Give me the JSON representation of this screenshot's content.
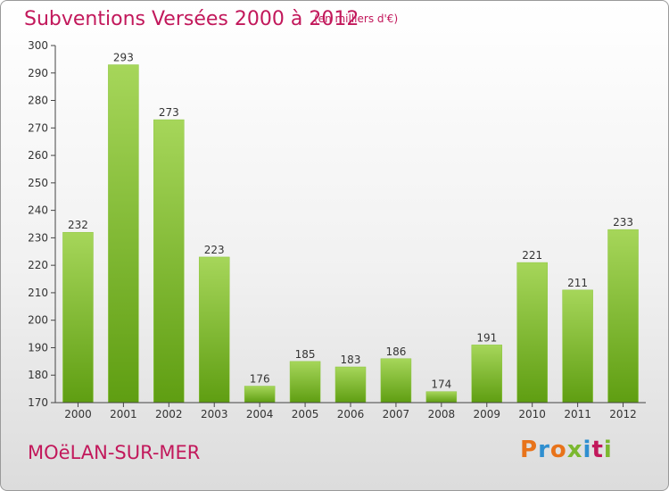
{
  "header": {
    "title": "Subventions Versées 2000 à 2012",
    "unit_note": "(en milliers d'€)"
  },
  "footer": {
    "city": "MOëLAN-SUR-MER",
    "logo_text": "Proxiti",
    "logo_colors": [
      "#e8731a",
      "#2f8fd0",
      "#e8731a",
      "#7bb82f",
      "#2f8fd0",
      "#c2185b",
      "#7bb82f"
    ]
  },
  "colors": {
    "title": "#c2185b",
    "bar_light": "#a6d65a",
    "bar_dark": "#5f9e12",
    "axis": "#444444"
  },
  "chart_data": {
    "type": "bar",
    "title": "Subventions Versées 2000 à 2012",
    "subtitle": "(en milliers d'€)",
    "xlabel": "",
    "ylabel": "",
    "categories": [
      "2000",
      "2001",
      "2002",
      "2003",
      "2004",
      "2005",
      "2006",
      "2007",
      "2008",
      "2009",
      "2010",
      "2011",
      "2012"
    ],
    "values": [
      232,
      293,
      273,
      223,
      176,
      185,
      183,
      186,
      174,
      191,
      221,
      211,
      233
    ],
    "ylim": [
      170,
      300
    ],
    "yticks": [
      170,
      180,
      190,
      200,
      210,
      220,
      230,
      240,
      250,
      260,
      270,
      280,
      290,
      300
    ],
    "grid": false,
    "legend": "none"
  }
}
